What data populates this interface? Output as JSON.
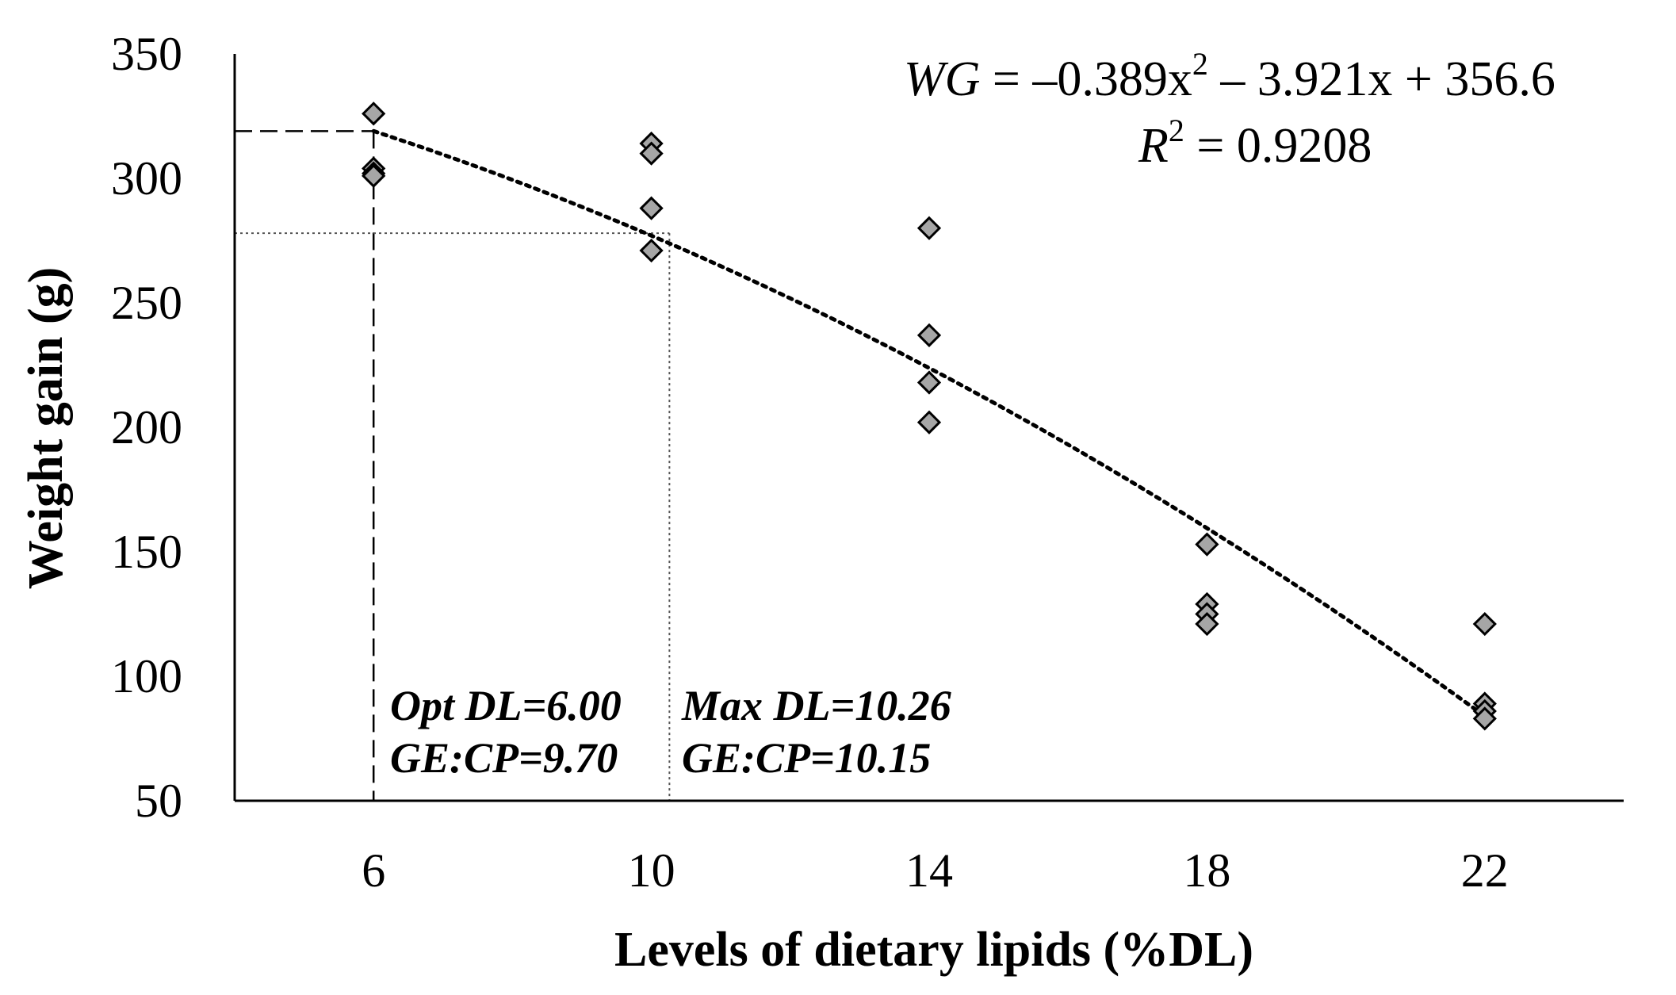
{
  "chart_data": {
    "type": "scatter",
    "xlabel": "Levels of dietary lipids (%DL)",
    "ylabel": "Weight gain (g)",
    "xlim": [
      4,
      24
    ],
    "ylim": [
      50,
      350
    ],
    "x_ticks": [
      6,
      10,
      14,
      18,
      22
    ],
    "y_ticks": [
      50,
      100,
      150,
      200,
      250,
      300,
      350
    ],
    "grid": false,
    "series": [
      {
        "name": "Weight gain",
        "marker": "diamond",
        "color": "#a6a6a6",
        "points": [
          {
            "x": 6,
            "y": 326
          },
          {
            "x": 6,
            "y": 304
          },
          {
            "x": 6,
            "y": 302
          },
          {
            "x": 6,
            "y": 301
          },
          {
            "x": 10,
            "y": 314
          },
          {
            "x": 10,
            "y": 310
          },
          {
            "x": 10,
            "y": 288
          },
          {
            "x": 10,
            "y": 271
          },
          {
            "x": 14,
            "y": 280
          },
          {
            "x": 14,
            "y": 237
          },
          {
            "x": 14,
            "y": 218
          },
          {
            "x": 14,
            "y": 202
          },
          {
            "x": 18,
            "y": 153
          },
          {
            "x": 18,
            "y": 129
          },
          {
            "x": 18,
            "y": 125
          },
          {
            "x": 18,
            "y": 121
          },
          {
            "x": 22,
            "y": 121
          },
          {
            "x": 22,
            "y": 89
          },
          {
            "x": 22,
            "y": 86
          },
          {
            "x": 22,
            "y": 83
          }
        ]
      }
    ],
    "trendline": {
      "type": "polynomial",
      "x_start": 6,
      "x_end": 22,
      "y_at_start": 319,
      "y_at_10": 277,
      "y_at_end": 84
    },
    "reference_lines": [
      {
        "name": "optimum",
        "x": 6.0,
        "y": 319,
        "style": "dashed"
      },
      {
        "name": "maximum",
        "x": 10.26,
        "y": 278,
        "style": "dotted"
      }
    ],
    "equation": {
      "prefix": "WG",
      "expression": " = –0.389x",
      "exponent": "2",
      "rest": " – 3.921x + 356.6"
    },
    "r_squared": {
      "label": "R",
      "exponent": "2",
      "value": " = 0.9208"
    },
    "annotations": [
      {
        "line1": "Opt DL=6.00",
        "line2": "GE:CP=9.70"
      },
      {
        "line1": "Max DL=10.26",
        "line2": "GE:CP=10.15"
      }
    ]
  }
}
